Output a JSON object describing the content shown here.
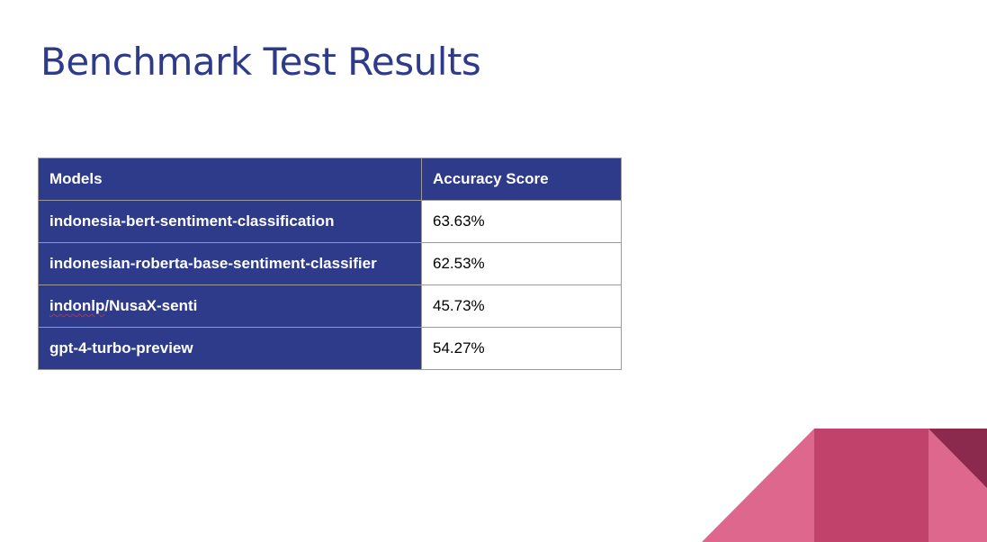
{
  "slide": {
    "title": "Benchmark Test Results"
  },
  "table": {
    "headers": [
      "Models",
      "Accuracy Score"
    ],
    "rows": [
      {
        "model_prefix": "",
        "model_spell": "",
        "model": "indonesia-bert-sentiment-classification",
        "score": "63.63%"
      },
      {
        "model_prefix": "",
        "model_spell": "",
        "model": "indonesian-roberta-base-sentiment-classifier",
        "score": "62.53%"
      },
      {
        "model_prefix": "",
        "model_spell": "indonlp",
        "model": "/NusaX-senti",
        "score": "45.73%"
      },
      {
        "model_prefix": "",
        "model_spell": "",
        "model": "gpt-4-turbo-preview",
        "score": "54.27%"
      }
    ]
  },
  "colors": {
    "header_background": "#2e3a8a",
    "title": "#2e3a8a",
    "deco_pink_light": "#de678d",
    "deco_pink_mid": "#c1426a",
    "deco_maroon": "#8c2a4d"
  }
}
